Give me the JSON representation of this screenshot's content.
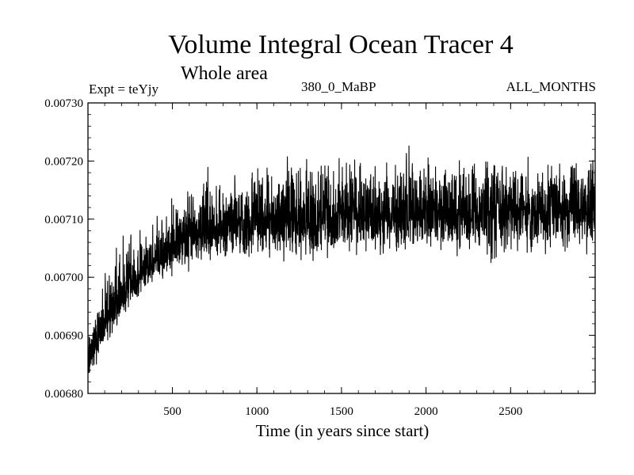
{
  "chart_data": {
    "type": "line",
    "title": "Volume Integral Ocean Tracer 4",
    "subtitle": "Whole area",
    "experiment": "Expt = teYjy",
    "period": "380_0_MaBP",
    "months": "ALL_MONTHS",
    "xlabel": "Time (in years since start)",
    "ylabel": "",
    "xlim": [
      1,
      3000
    ],
    "ylim": [
      0.0068,
      0.0073
    ],
    "x_ticks": [
      500,
      1000,
      1500,
      2000,
      2500
    ],
    "x_tick_labels": [
      "500",
      "1000",
      "1500",
      "2000",
      "2500"
    ],
    "y_ticks": [
      0.0068,
      0.0069,
      0.007,
      0.0071,
      0.0072,
      0.0073
    ],
    "y_tick_labels": [
      "0.00680",
      "0.00690",
      "0.00700",
      "0.00710",
      "0.00720",
      "0.00730"
    ],
    "series": [
      {
        "name": "Volume Integral Ocean Tracer 4",
        "color": "#000000",
        "x": [
          1,
          25,
          50,
          75,
          100,
          125,
          150,
          175,
          200,
          225,
          250,
          275,
          300,
          325,
          350,
          375,
          400,
          425,
          450,
          475,
          500,
          550,
          600,
          650,
          700,
          750,
          800,
          850,
          900,
          950,
          1000,
          1050,
          1100,
          1150,
          1200,
          1250,
          1300,
          1350,
          1400,
          1450,
          1500,
          1550,
          1600,
          1650,
          1700,
          1750,
          1800,
          1850,
          1900,
          1950,
          2000,
          2050,
          2100,
          2150,
          2200,
          2250,
          2300,
          2350,
          2400,
          2450,
          2500,
          2550,
          2600,
          2650,
          2700,
          2750,
          2800,
          2850,
          2900,
          2950,
          3000
        ],
        "mean": [
          0.006845,
          0.00687,
          0.00689,
          0.006905,
          0.00692,
          0.006935,
          0.006945,
          0.00696,
          0.00697,
          0.00698,
          0.00699,
          0.006997,
          0.007005,
          0.007012,
          0.00702,
          0.007025,
          0.00703,
          0.007035,
          0.00704,
          0.007045,
          0.00705,
          0.007058,
          0.007065,
          0.00707,
          0.007075,
          0.00708,
          0.007085,
          0.007088,
          0.00709,
          0.007093,
          0.007095,
          0.007097,
          0.007099,
          0.0071,
          0.0071,
          0.0071,
          0.0071,
          0.0071,
          0.0071,
          0.007101,
          0.007102,
          0.007103,
          0.007104,
          0.007105,
          0.007106,
          0.007107,
          0.007108,
          0.007109,
          0.00711,
          0.00711,
          0.00711,
          0.00711,
          0.00711,
          0.00711,
          0.00711,
          0.007112,
          0.007112,
          0.007112,
          0.007112,
          0.007112,
          0.007112,
          0.007112,
          0.007113,
          0.007113,
          0.007113,
          0.007114,
          0.007114,
          0.007114,
          0.007115,
          0.007115,
          0.007115
        ],
        "upper": [
          0.00691,
          0.00696,
          0.00698,
          0.007,
          0.00701,
          0.00703,
          0.00705,
          0.00706,
          0.00707,
          0.00708,
          0.00708,
          0.00709,
          0.00709,
          0.0071,
          0.0071,
          0.00711,
          0.00712,
          0.00712,
          0.00713,
          0.00713,
          0.00714,
          0.00714,
          0.00716,
          0.00716,
          0.00719,
          0.00719,
          0.00718,
          0.00718,
          0.00719,
          0.00719,
          0.00719,
          0.00719,
          0.0072,
          0.00721,
          0.00722,
          0.0072,
          0.00722,
          0.0072,
          0.00722,
          0.0072,
          0.00721,
          0.00721,
          0.00721,
          0.0072,
          0.00721,
          0.00722,
          0.0072,
          0.00723,
          0.00723,
          0.00722,
          0.00723,
          0.00721,
          0.0072,
          0.00721,
          0.0072,
          0.0072,
          0.00721,
          0.00721,
          0.00723,
          0.00722,
          0.00721,
          0.00721,
          0.00721,
          0.00721,
          0.00721,
          0.00722,
          0.0072,
          0.00721,
          0.00722,
          0.00722,
          0.00721
        ],
        "lower": [
          0.00681,
          0.00684,
          0.00685,
          0.00686,
          0.00687,
          0.00688,
          0.00689,
          0.0069,
          0.00692,
          0.00693,
          0.00694,
          0.00695,
          0.00696,
          0.00697,
          0.00698,
          0.00698,
          0.00699,
          0.00699,
          0.007,
          0.007,
          0.007,
          0.00701,
          0.00701,
          0.00702,
          0.00702,
          0.00702,
          0.00703,
          0.00703,
          0.00703,
          0.00703,
          0.00704,
          0.00704,
          0.00702,
          0.00702,
          0.00703,
          0.00703,
          0.00703,
          0.00701,
          0.00702,
          0.00703,
          0.00703,
          0.00703,
          0.00704,
          0.00703,
          0.00704,
          0.00703,
          0.00704,
          0.00703,
          0.00704,
          0.00704,
          0.00704,
          0.00704,
          0.00704,
          0.00704,
          0.00703,
          0.00704,
          0.00704,
          0.00701,
          0.00702,
          0.00703,
          0.00704,
          0.00704,
          0.00703,
          0.00703,
          0.00704,
          0.00704,
          0.00704,
          0.00704,
          0.00704,
          0.00704,
          0.00704
        ]
      }
    ]
  }
}
